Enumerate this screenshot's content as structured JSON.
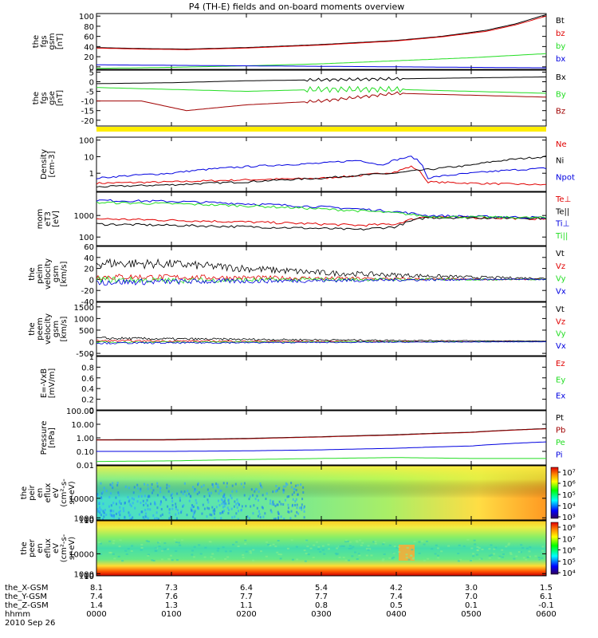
{
  "title": "P4 (TH-E) fields and on-board moments overview",
  "date_label": "2010 Sep 26",
  "colors": {
    "black": "#000000",
    "red": "#e00000",
    "darkred": "#a00000",
    "green": "#22dd22",
    "blue": "#0000e0",
    "yellow": "#ffee00"
  },
  "chart_data": [
    {
      "id": "fgs-gsm",
      "type": "line",
      "ylabel": [
        "the",
        "fgs",
        "gsm",
        "[nT]"
      ],
      "ylim": [
        -5,
        105
      ],
      "yticks": [
        0,
        20,
        40,
        60,
        80,
        100
      ],
      "xlim": [
        0,
        6
      ],
      "grid": false,
      "series": [
        {
          "name": "Bt",
          "color": "#000000",
          "x": [
            0,
            0.6,
            1.2,
            2,
            3,
            4,
            4.6,
            5.2,
            5.6,
            6
          ],
          "y": [
            38,
            36,
            35,
            38,
            44,
            52,
            60,
            72,
            85,
            103
          ]
        },
        {
          "name": "bz",
          "color": "#e00000",
          "x": [
            0,
            0.6,
            1.2,
            2,
            3,
            4,
            4.6,
            5.2,
            5.6,
            6
          ],
          "y": [
            37,
            35,
            34,
            37,
            43,
            51,
            59,
            70,
            83,
            100
          ]
        },
        {
          "name": "by",
          "color": "#22dd22",
          "x": [
            0,
            1,
            2,
            3,
            4,
            5,
            6
          ],
          "y": [
            -3,
            -1,
            2,
            6,
            12,
            18,
            26
          ]
        },
        {
          "name": "bx",
          "color": "#0000e0",
          "x": [
            0,
            1,
            2,
            3,
            4,
            5,
            6
          ],
          "y": [
            4,
            3,
            2,
            1,
            0,
            -1,
            -2
          ]
        }
      ]
    },
    {
      "id": "fgs-gse",
      "type": "line",
      "ylabel": [
        "the",
        "fgs",
        "gse",
        "[nT]"
      ],
      "ylim": [
        -23,
        6
      ],
      "yticks": [
        5,
        0,
        -5,
        -10,
        -15,
        -20
      ],
      "xlim": [
        0,
        6
      ],
      "grid": false,
      "series": [
        {
          "name": "Bx",
          "color": "#000000",
          "x": [
            0,
            1,
            2,
            3,
            4,
            5,
            6
          ],
          "y": [
            -1,
            -0.5,
            0.5,
            1,
            1.5,
            2,
            2.5
          ]
        },
        {
          "name": "By",
          "color": "#22dd22",
          "x": [
            0,
            1,
            2,
            3,
            4,
            5,
            6
          ],
          "y": [
            -3,
            -4,
            -5,
            -4,
            -4,
            -5,
            -6
          ]
        },
        {
          "name": "Bz",
          "color": "#a00000",
          "x": [
            0,
            0.6,
            1.2,
            2,
            3,
            4,
            5,
            6
          ],
          "y": [
            -10,
            -10,
            -15,
            -12,
            -10,
            -6,
            -7,
            -8
          ]
        }
      ]
    },
    {
      "id": "density",
      "type": "line",
      "scale": "log",
      "ylabel": [
        "Density",
        "[cm-3]"
      ],
      "ylim": [
        0.08,
        150
      ],
      "yticks": [
        100,
        10,
        1
      ],
      "xlim": [
        0,
        6
      ],
      "grid": false,
      "series": [
        {
          "name": "Ne",
          "color": "#e00000",
          "x": [
            0,
            1,
            2,
            3,
            3.5,
            4,
            4.2,
            4.4,
            5,
            6
          ],
          "y": [
            0.25,
            0.3,
            0.4,
            0.5,
            0.7,
            1.2,
            2.5,
            0.3,
            0.25,
            0.2
          ]
        },
        {
          "name": "Ni",
          "color": "#000000",
          "x": [
            0,
            1,
            2,
            3,
            4,
            4.5,
            5,
            6
          ],
          "y": [
            0.15,
            0.2,
            0.3,
            0.5,
            1,
            1.8,
            3,
            10
          ]
        },
        {
          "name": "Npot",
          "color": "#0000e0",
          "x": [
            0,
            1,
            2,
            3,
            3.5,
            3.8,
            4.2,
            4.4,
            5,
            6
          ],
          "y": [
            0.5,
            1,
            2.5,
            4,
            6,
            3,
            10,
            0.5,
            1,
            2
          ]
        }
      ]
    },
    {
      "id": "temperature",
      "type": "line",
      "scale": "log",
      "ylabel": [
        "mom",
        "eT3",
        "[eV]"
      ],
      "ylim": [
        40,
        12000
      ],
      "yticks": [
        1000,
        100
      ],
      "xlim": [
        0,
        6
      ],
      "grid": false,
      "series": [
        {
          "name": "Te⊥",
          "color": "#e00000",
          "x": [
            0,
            1,
            2,
            3,
            3.5,
            4,
            4.4,
            5,
            6
          ],
          "y": [
            700,
            600,
            500,
            400,
            350,
            400,
            900,
            800,
            700
          ]
        },
        {
          "name": "Te||",
          "color": "#000000",
          "x": [
            0,
            1,
            2,
            3,
            3.5,
            4,
            4.4,
            5,
            6
          ],
          "y": [
            400,
            350,
            300,
            250,
            220,
            300,
            800,
            800,
            750
          ]
        },
        {
          "name": "Ti⊥",
          "color": "#0000e0",
          "x": [
            0,
            1,
            2,
            3,
            4,
            4.4,
            5,
            6
          ],
          "y": [
            5000,
            4500,
            3500,
            2500,
            1500,
            1000,
            900,
            800
          ]
        },
        {
          "name": "Ti||",
          "color": "#22dd22",
          "x": [
            0,
            1,
            2,
            3,
            4,
            4.4,
            5,
            6
          ],
          "y": [
            4000,
            3500,
            2800,
            2000,
            1300,
            900,
            850,
            780
          ]
        }
      ]
    },
    {
      "id": "peim-velocity",
      "type": "line",
      "ylabel": [
        "the",
        "peim",
        "velocity",
        "gsm",
        "[km/s]"
      ],
      "ylim": [
        -40,
        60
      ],
      "yticks": [
        60,
        40,
        20,
        0,
        -20,
        -40
      ],
      "xlim": [
        0,
        6
      ],
      "grid": false,
      "series": [
        {
          "name": "Vt",
          "color": "#000000",
          "x": [
            0,
            1,
            2,
            3,
            4,
            5,
            6
          ],
          "y": [
            30,
            28,
            20,
            12,
            8,
            4,
            2
          ]
        },
        {
          "name": "Vz",
          "color": "#e00000",
          "x": [
            0,
            1,
            2,
            3,
            4,
            5,
            6
          ],
          "y": [
            5,
            4,
            3,
            2,
            1,
            0,
            0
          ]
        },
        {
          "name": "Vy",
          "color": "#22dd22",
          "x": [
            0,
            1,
            2,
            3,
            4,
            5,
            6
          ],
          "y": [
            0,
            -2,
            -1,
            0,
            0,
            0,
            0
          ]
        },
        {
          "name": "Vx",
          "color": "#0000e0",
          "x": [
            0,
            1,
            2,
            3,
            4,
            5,
            6
          ],
          "y": [
            -5,
            -4,
            -3,
            -2,
            -1,
            0,
            0
          ]
        }
      ]
    },
    {
      "id": "peem-velocity",
      "type": "line",
      "ylabel": [
        "the",
        "peem",
        "velocity",
        "gsm",
        "[km/s]"
      ],
      "ylim": [
        -600,
        1700
      ],
      "yticks": [
        1500,
        1000,
        500,
        0,
        -500
      ],
      "xlim": [
        0,
        6
      ],
      "grid": false,
      "series": [
        {
          "name": "Vt",
          "color": "#000000",
          "x": [
            0,
            1,
            2,
            3,
            4,
            5,
            6
          ],
          "y": [
            150,
            120,
            100,
            80,
            60,
            40,
            30
          ]
        },
        {
          "name": "Vz",
          "color": "#e00000",
          "x": [
            0,
            1,
            2,
            3,
            4,
            5,
            6
          ],
          "y": [
            40,
            30,
            20,
            15,
            10,
            5,
            0
          ]
        },
        {
          "name": "Vy",
          "color": "#22dd22",
          "x": [
            0,
            1,
            2,
            3,
            4,
            5,
            6
          ],
          "y": [
            -20,
            -15,
            -10,
            -5,
            0,
            0,
            0
          ]
        },
        {
          "name": "Vx",
          "color": "#0000e0",
          "x": [
            0,
            1,
            2,
            3,
            4,
            5,
            6
          ],
          "y": [
            -60,
            -50,
            -40,
            -30,
            -20,
            -10,
            0
          ]
        }
      ]
    },
    {
      "id": "e-field",
      "type": "line",
      "ylabel": [
        "E=-VxB",
        "[mV/m]"
      ],
      "ylim": [
        0,
        1
      ],
      "yticks": [
        1.0,
        0.8,
        0.6,
        0.4,
        0.2,
        0.0
      ],
      "xlim": [
        0,
        6
      ],
      "grid": false,
      "series": [
        {
          "name": "Ez",
          "color": "#e00000",
          "x": [],
          "y": []
        },
        {
          "name": "Ey",
          "color": "#22dd22",
          "x": [],
          "y": []
        },
        {
          "name": "Ex",
          "color": "#0000e0",
          "x": [],
          "y": []
        }
      ]
    },
    {
      "id": "pressure",
      "type": "line",
      "scale": "log",
      "ylabel": [
        "Pressure",
        "[nPa]"
      ],
      "ylim": [
        0.01,
        100
      ],
      "yticks": [
        100,
        10,
        1,
        0.1,
        0.01
      ],
      "ytick_labels": [
        "100.00",
        "10.00",
        "1.00",
        "0.10",
        "0.01"
      ],
      "xlim": [
        0,
        6
      ],
      "grid": false,
      "series": [
        {
          "name": "Pt",
          "color": "#000000",
          "x": [
            0,
            1,
            2,
            3,
            4,
            5,
            6
          ],
          "y": [
            0.72,
            0.75,
            0.9,
            1.2,
            1.7,
            2.6,
            4.8
          ]
        },
        {
          "name": "Pb",
          "color": "#a00000",
          "x": [
            0,
            1,
            2,
            3,
            4,
            5,
            6
          ],
          "y": [
            0.68,
            0.7,
            0.85,
            1.15,
            1.6,
            2.5,
            4.6
          ]
        },
        {
          "name": "Pe",
          "color": "#22dd22",
          "x": [
            0,
            1,
            2,
            3,
            4,
            5,
            6
          ],
          "y": [
            0.018,
            0.02,
            0.025,
            0.03,
            0.035,
            0.03,
            0.03
          ]
        },
        {
          "name": "Pi",
          "color": "#0000e0",
          "x": [
            0,
            1,
            2,
            3,
            4,
            5,
            6
          ],
          "y": [
            0.1,
            0.1,
            0.11,
            0.13,
            0.17,
            0.25,
            0.5
          ]
        }
      ]
    },
    {
      "id": "peir-spectrogram",
      "type": "heatmap",
      "ylabel": [
        "the",
        "peir",
        "en",
        "eflux",
        "eV",
        "(cm²-s-",
        "sr-eV)"
      ],
      "ylim": [
        8,
        25000
      ],
      "yticks": [
        10000,
        1000,
        100,
        10
      ],
      "colorbar_ticks": [
        "10⁷",
        "10⁶",
        "10⁵",
        "10⁴",
        "10³"
      ]
    },
    {
      "id": "peer-spectrogram",
      "type": "heatmap",
      "ylabel": [
        "the",
        "peer",
        "en",
        "eflux",
        "eV",
        "(cm²-s-",
        "sr-eV)"
      ],
      "ylim": [
        8,
        25000
      ],
      "yticks": [
        10000,
        1000,
        100,
        10
      ],
      "colorbar_ticks": [
        "10⁸",
        "10⁷",
        "10⁶",
        "10⁵",
        "10⁴"
      ]
    }
  ],
  "ephemeris": [
    {
      "label": "the_X-GSM",
      "values": [
        "8.1",
        "7.3",
        "6.4",
        "5.4",
        "4.2",
        "3.0",
        "1.5"
      ]
    },
    {
      "label": "the_Y-GSM",
      "values": [
        "7.4",
        "7.6",
        "7.7",
        "7.7",
        "7.4",
        "7.0",
        "6.1"
      ]
    },
    {
      "label": "the_Z-GSM",
      "values": [
        "1.4",
        "1.3",
        "1.1",
        "0.8",
        "0.5",
        "0.1",
        "-0.1"
      ]
    },
    {
      "label": "hhmm",
      "values": [
        "0000",
        "0100",
        "0200",
        "0300",
        "0400",
        "0500",
        "0600"
      ]
    }
  ]
}
